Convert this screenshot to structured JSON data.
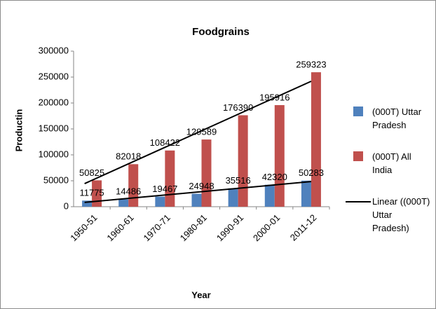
{
  "chart_data": {
    "type": "bar",
    "title": "Foodgrains",
    "x_label": "Year",
    "y_label": "Productin",
    "categories": [
      "1950-51",
      "1960-61",
      "1970-71",
      "1980-81",
      "1990-91",
      "2000-01",
      "2011-12"
    ],
    "series": [
      {
        "name": "(000T) Uttar Pradesh",
        "color": "#4f81bd",
        "values": [
          11775,
          14486,
          19467,
          24948,
          35516,
          42320,
          50283
        ],
        "trendline": {
          "type": "linear",
          "name": "Linear ((000T) Uttar Pradesh)",
          "color": "#000000"
        }
      },
      {
        "name": "(000T) All India",
        "color": "#c0504d",
        "values": [
          50825,
          82018,
          108422,
          129589,
          176390,
          195916,
          259323
        ],
        "trendline": {
          "type": "linear",
          "color": "#000000"
        }
      }
    ],
    "ylim": [
      0,
      300000
    ],
    "yticks": [
      0,
      50000,
      100000,
      150000,
      200000,
      250000,
      300000
    ],
    "grid": false
  }
}
